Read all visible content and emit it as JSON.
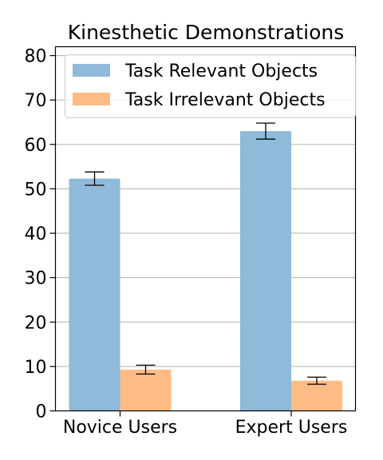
{
  "chart_data": {
    "type": "bar",
    "title": "Kinesthetic Demonstrations",
    "categories": [
      "Novice Users",
      "Expert Users"
    ],
    "series": [
      {
        "name": "Task Relevant Objects",
        "color": "#8fbad9",
        "values": [
          52.3,
          63.0
        ],
        "error": [
          1.5,
          1.8
        ]
      },
      {
        "name": "Task Irrelevant Objects",
        "color": "#ffbb85",
        "values": [
          9.3,
          6.8
        ],
        "error": [
          1.0,
          0.8
        ]
      }
    ],
    "ylim": [
      0,
      82
    ],
    "yticks": [
      0,
      10,
      20,
      30,
      40,
      50,
      60,
      70,
      80
    ],
    "grid": "horizontal",
    "legend_position": "top"
  }
}
